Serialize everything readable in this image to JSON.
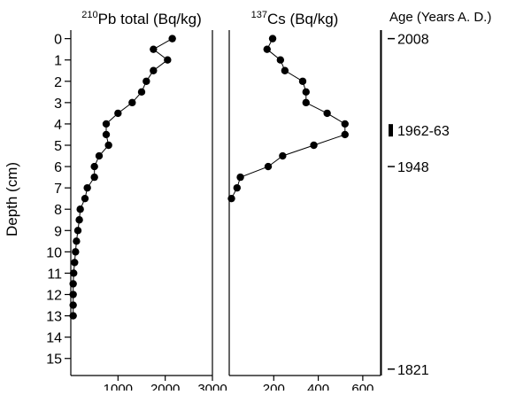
{
  "chart_data": [
    {
      "type": "line",
      "title_sup": "210",
      "title": "Pb total (Bq/kg)",
      "ylabel": "Depth (cm)",
      "y_ticks": [
        "0",
        "1",
        "2",
        "3",
        "4",
        "5",
        "6",
        "7",
        "8",
        "9",
        "10",
        "11",
        "12",
        "13",
        "14",
        "15"
      ],
      "x_ticks": [
        "1000",
        "2000",
        "3000"
      ],
      "xlim": [
        0,
        3000
      ],
      "ylim": [
        15.8,
        -0.4
      ],
      "y_inverted": true,
      "marker": "filled-circle",
      "color": "#000000",
      "series": [
        {
          "x": [
            2150,
            1750,
            2050,
            1750,
            1600,
            1500,
            1300,
            1000,
            750,
            750,
            800,
            600,
            500,
            500,
            350,
            300,
            200,
            180,
            150,
            120,
            100,
            80,
            60,
            50,
            50,
            50,
            50
          ],
          "y": [
            0,
            0.5,
            1,
            1.5,
            2,
            2.5,
            3,
            3.5,
            4,
            4.5,
            5,
            5.5,
            6,
            6.5,
            7,
            7.5,
            8,
            8.5,
            9,
            9.5,
            10,
            10.5,
            11,
            11.5,
            12,
            12.5,
            13
          ]
        }
      ]
    },
    {
      "type": "line",
      "title_sup": "137",
      "title": "Cs (Bq/kg)",
      "x_ticks": [
        "200",
        "400",
        "600"
      ],
      "xlim": [
        0,
        680
      ],
      "ylim": [
        15.8,
        -0.4
      ],
      "y_inverted": true,
      "marker": "filled-circle",
      "color": "#000000",
      "series": [
        {
          "x": [
            195,
            170,
            230,
            250,
            330,
            345,
            345,
            440,
            520,
            520,
            380,
            240,
            175,
            50,
            35,
            10
          ],
          "y": [
            0,
            0.5,
            1,
            1.5,
            2,
            2.5,
            3,
            3.5,
            4,
            4.5,
            5,
            5.5,
            6,
            6.5,
            7,
            7.5
          ]
        }
      ]
    }
  ],
  "age_axis": {
    "title": "Age (Years A. D.)",
    "markers": [
      {
        "label": "2008",
        "depth": 0,
        "style": "tick"
      },
      {
        "label": "1962-63",
        "depth": 4.3,
        "style": "bar"
      },
      {
        "label": "1948",
        "depth": 6,
        "style": "tick"
      },
      {
        "label": "1821",
        "depth": 15.5,
        "style": "tick"
      }
    ]
  }
}
